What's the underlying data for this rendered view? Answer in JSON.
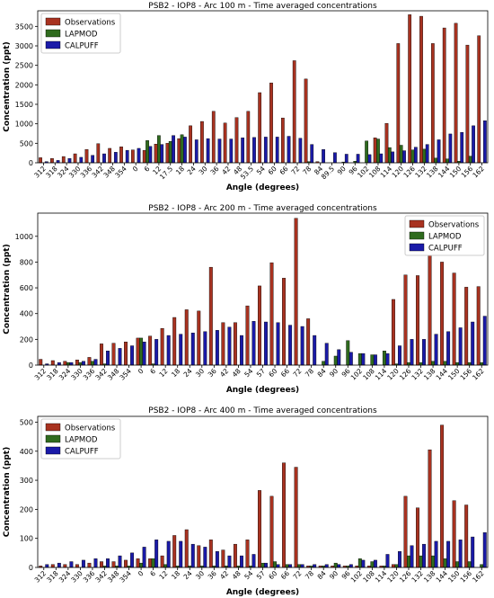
{
  "colors": {
    "Observations": "#a83220",
    "LAPMOD": "#2f6b1e",
    "CALPUFF": "#1a1aa8"
  },
  "chart_data": [
    {
      "type": "bar",
      "title": "PSB2 - IOP8 - Arc 100 m - Time averaged concentrations",
      "xlabel": "Angle (degrees)",
      "ylabel": "Concentration (ppt)",
      "ylim": [
        0,
        3900
      ],
      "yticks": [
        0,
        500,
        1000,
        1500,
        2000,
        2500,
        3000,
        3500
      ],
      "legend_position": "top-left",
      "categories": [
        "312",
        "318",
        "324",
        "330",
        "336",
        "342",
        "348",
        "354",
        "0",
        "6",
        "12",
        "17.5",
        "18",
        "24",
        "30",
        "36",
        "42",
        "48",
        "53.5",
        "54",
        "60",
        "66",
        "72",
        "78",
        "84",
        "89.5",
        "90",
        "96",
        "102",
        "108",
        "114",
        "120",
        "126",
        "132",
        "138",
        "144",
        "150",
        "156",
        "162"
      ],
      "series": [
        {
          "name": "Observations",
          "values": [
            130,
            110,
            160,
            230,
            340,
            490,
            370,
            410,
            330,
            320,
            480,
            500,
            620,
            950,
            1060,
            1320,
            1020,
            1160,
            1320,
            1800,
            2050,
            1150,
            2620,
            2150,
            30,
            0,
            0,
            0,
            0,
            640,
            1010,
            3060,
            3800,
            3760,
            3060,
            3460,
            3580,
            3020,
            3260
          ]
        },
        {
          "name": "LAPMOD",
          "values": [
            0,
            0,
            0,
            0,
            0,
            0,
            0,
            0,
            0,
            570,
            700,
            550,
            720,
            0,
            0,
            0,
            0,
            0,
            0,
            0,
            0,
            0,
            0,
            30,
            0,
            0,
            20,
            40,
            560,
            610,
            390,
            450,
            330,
            350,
            120,
            100,
            40,
            170,
            0
          ]
        },
        {
          "name": "CALPUFF",
          "values": [
            30,
            60,
            110,
            140,
            190,
            230,
            270,
            320,
            370,
            420,
            470,
            700,
            660,
            590,
            620,
            610,
            610,
            640,
            650,
            660,
            660,
            680,
            630,
            470,
            340,
            260,
            220,
            220,
            210,
            230,
            280,
            310,
            400,
            470,
            590,
            740,
            780,
            950,
            1080
          ]
        }
      ]
    },
    {
      "type": "bar",
      "title": "PSB2 - IOP8 - Arc 200 m - Time averaged concentrations",
      "xlabel": "Angle (degrees)",
      "ylabel": "Concentration (ppt)",
      "ylim": [
        0,
        1180
      ],
      "yticks": [
        0,
        200,
        400,
        600,
        800,
        1000
      ],
      "legend_position": "top-right",
      "categories": [
        "312",
        "318",
        "324",
        "330",
        "336",
        "342",
        "348",
        "354",
        "0",
        "6",
        "12",
        "18",
        "24",
        "30",
        "36",
        "42",
        "48",
        "54",
        "57",
        "60",
        "66",
        "72",
        "78",
        "84",
        "90",
        "96",
        "102",
        "108",
        "114",
        "120",
        "126",
        "132",
        "138",
        "144",
        "150",
        "156",
        "162"
      ],
      "series": [
        {
          "name": "Observations",
          "values": [
            45,
            35,
            30,
            40,
            60,
            165,
            170,
            180,
            210,
            225,
            285,
            370,
            430,
            420,
            760,
            330,
            330,
            460,
            615,
            795,
            675,
            1140,
            360,
            0,
            0,
            0,
            0,
            0,
            0,
            510,
            700,
            695,
            960,
            800,
            715,
            605,
            610
          ]
        },
        {
          "name": "LAPMOD",
          "values": [
            0,
            0,
            20,
            20,
            30,
            10,
            0,
            0,
            210,
            10,
            0,
            0,
            0,
            0,
            0,
            0,
            0,
            0,
            0,
            0,
            0,
            0,
            0,
            30,
            70,
            190,
            90,
            80,
            110,
            10,
            20,
            20,
            30,
            30,
            20,
            20,
            20
          ]
        },
        {
          "name": "CALPUFF",
          "values": [
            10,
            20,
            20,
            30,
            45,
            110,
            130,
            150,
            180,
            200,
            230,
            240,
            250,
            260,
            270,
            295,
            230,
            340,
            335,
            330,
            310,
            300,
            230,
            170,
            120,
            100,
            90,
            80,
            90,
            150,
            200,
            200,
            240,
            260,
            290,
            335,
            380
          ]
        }
      ]
    },
    {
      "type": "bar",
      "title": "PSB2 - IOP8 - Arc 400 m - Time averaged concentrations",
      "xlabel": "Angle (degrees)",
      "ylabel": "Concentration (ppt)",
      "ylim": [
        0,
        520
      ],
      "yticks": [
        0,
        100,
        200,
        300,
        400,
        500
      ],
      "legend_position": "top-left",
      "categories": [
        "312",
        "318",
        "324",
        "330",
        "336",
        "342",
        "348",
        "354",
        "0",
        "6",
        "12",
        "18",
        "24",
        "30",
        "36",
        "42",
        "48",
        "54",
        "57",
        "60",
        "66",
        "72",
        "78",
        "84",
        "90",
        "96",
        "102",
        "108",
        "114",
        "120",
        "126",
        "132",
        "138",
        "144",
        "150",
        "156",
        "162"
      ],
      "series": [
        {
          "name": "Observations",
          "values": [
            5,
            10,
            10,
            10,
            15,
            20,
            20,
            25,
            30,
            30,
            40,
            110,
            130,
            75,
            95,
            60,
            80,
            95,
            265,
            245,
            360,
            345,
            5,
            5,
            5,
            5,
            5,
            5,
            5,
            10,
            245,
            205,
            405,
            490,
            230,
            215,
            0
          ]
        },
        {
          "name": "LAPMOD",
          "values": [
            0,
            0,
            0,
            0,
            0,
            5,
            5,
            5,
            15,
            30,
            10,
            5,
            5,
            5,
            5,
            5,
            5,
            5,
            15,
            20,
            10,
            10,
            5,
            5,
            15,
            5,
            30,
            20,
            5,
            10,
            40,
            40,
            40,
            30,
            20,
            20,
            10
          ]
        },
        {
          "name": "CALPUFF",
          "values": [
            10,
            15,
            20,
            25,
            30,
            30,
            40,
            50,
            70,
            95,
            90,
            90,
            80,
            70,
            55,
            40,
            40,
            45,
            15,
            10,
            10,
            10,
            10,
            10,
            10,
            10,
            25,
            25,
            45,
            55,
            75,
            80,
            90,
            90,
            95,
            105,
            120
          ]
        }
      ]
    }
  ]
}
